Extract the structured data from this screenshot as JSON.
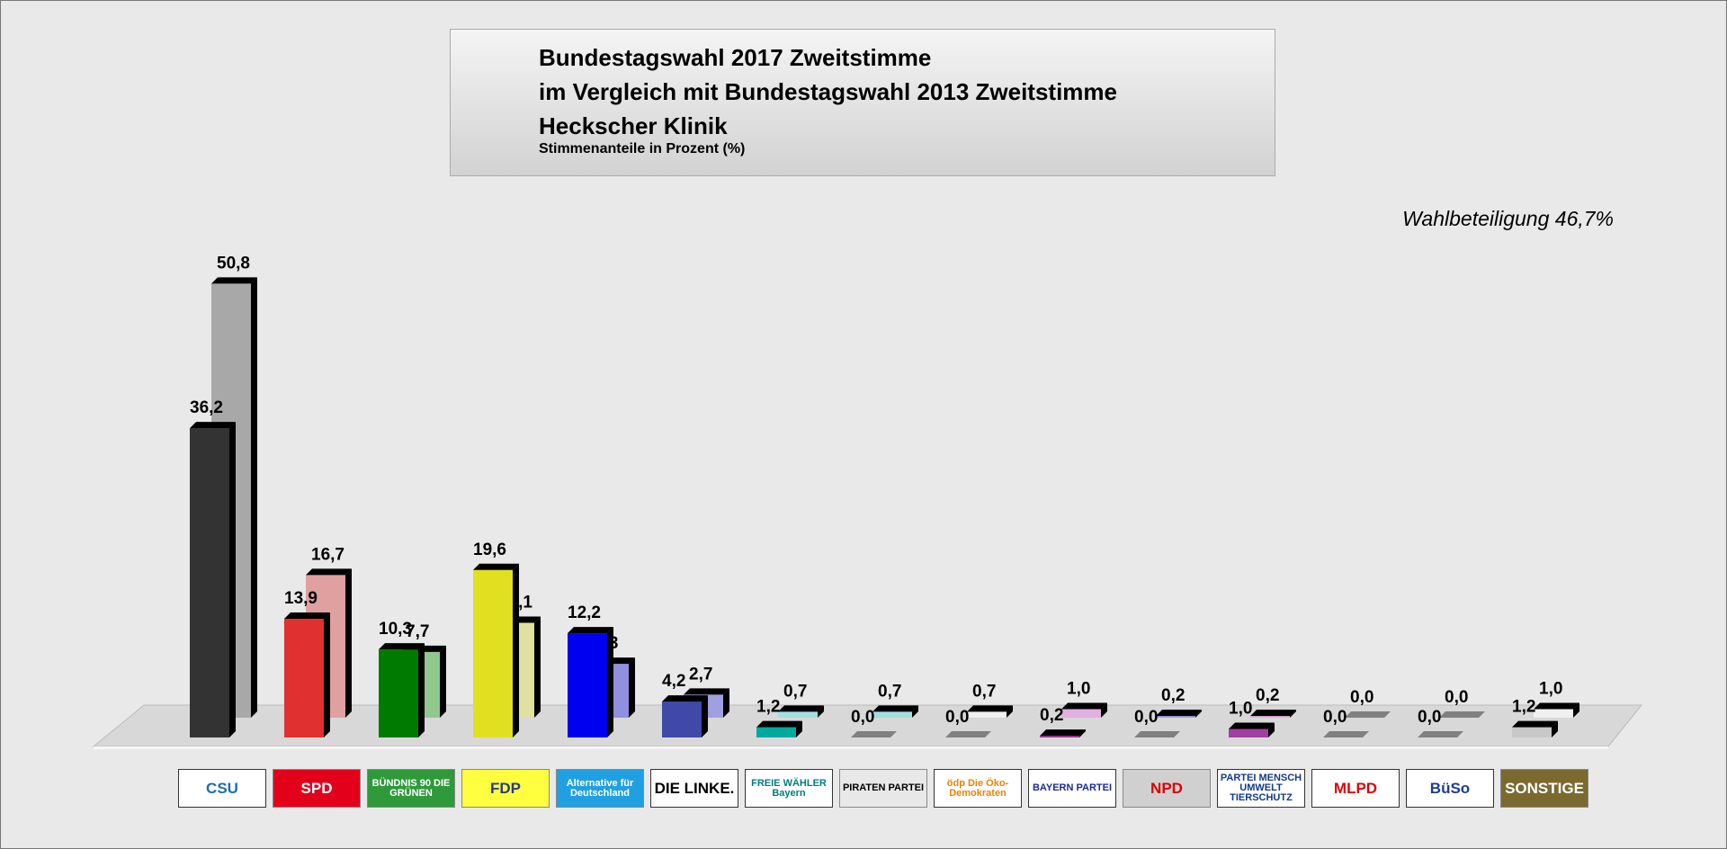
{
  "title": {
    "line1": "Bundestagswahl 2017 Zweitstimme",
    "line2": "im Vergleich mit Bundestagswahl 2013 Zweitstimme",
    "line3": "Heckscher Klinik",
    "subtitle": "Stimmenanteile in Prozent (%)"
  },
  "turnout": "Wahlbeteiligung 46,7%",
  "chart_data": {
    "type": "bar",
    "title": "Bundestagswahl 2017 Zweitstimme im Vergleich mit Bundestagswahl 2013 Zweitstimme",
    "ylabel": "Stimmenanteile in Prozent (%)",
    "ylim": [
      0,
      55
    ],
    "categories": [
      "CSU",
      "SPD",
      "BÜNDNIS 90 DIE GRÜNEN",
      "FDP",
      "Alternative für Deutschland",
      "DIE LINKE.",
      "FREIE WÄHLER",
      "PIRATEN PARTEI",
      "ödp",
      "BAYERN PARTEI",
      "NPD",
      "PARTEI MENSCH UMWELT TIERSCHUTZ",
      "MLPD",
      "BüSo",
      "SONSTIGE"
    ],
    "series": [
      {
        "name": "2017",
        "values": [
          36.2,
          13.9,
          10.3,
          19.6,
          12.2,
          4.2,
          1.2,
          0.0,
          0.0,
          0.2,
          0.0,
          1.0,
          0.0,
          0.0,
          1.2
        ],
        "labels": [
          "36,2",
          "13,9",
          "10,3",
          "19,6",
          "12,2",
          "4,2",
          "1,2",
          "0,0",
          "0,0",
          "0,2",
          "0,0",
          "1,0",
          "0,0",
          "0,0",
          "1,2"
        ],
        "colors": [
          "#333333",
          "#e03030",
          "#007a00",
          "#e0e020",
          "#0000f0",
          "#4048a8",
          "#00a8a0",
          "#888888",
          "#888888",
          "#a03090",
          "#888888",
          "#a040a0",
          "#888888",
          "#888888",
          "#c8c8c8"
        ]
      },
      {
        "name": "2013",
        "values": [
          50.8,
          16.7,
          7.7,
          11.1,
          6.3,
          2.7,
          0.7,
          0.7,
          0.7,
          1.0,
          0.2,
          0.2,
          0.0,
          0.0,
          1.0
        ],
        "labels": [
          "50,8",
          "16,7",
          "7,7",
          "11,1",
          "6,3",
          "2,7",
          "0,7",
          "0,7",
          "0,7",
          "1,0",
          "0,2",
          "0,2",
          "0,0",
          "0,0",
          "1,0"
        ],
        "colors": [
          "#a8a8a8",
          "#e0a0a0",
          "#90c890",
          "#e0e0a0",
          "#9090e0",
          "#a0a0e0",
          "#a0e0e0",
          "#a0e0e0",
          "#f0f0f0",
          "#e0b0e0",
          "#a0a0e0",
          "#e0b0e0",
          "#888888",
          "#888888",
          "#f0f0f0"
        ]
      }
    ]
  },
  "logos": [
    {
      "text": "CSU",
      "bg": "#ffffff",
      "fg": "#1a6eb8"
    },
    {
      "text": "SPD",
      "bg": "#e3001b",
      "fg": "#ffffff"
    },
    {
      "text": "BÜNDNIS 90 DIE GRÜNEN",
      "bg": "#2e9a3a",
      "fg": "#ffffff"
    },
    {
      "text": "FDP",
      "bg": "#ffff40",
      "fg": "#2a3a8a"
    },
    {
      "text": "Alternative für Deutschland",
      "bg": "#20a0e0",
      "fg": "#ffffff"
    },
    {
      "text": "DIE LINKE.",
      "bg": "#ffffff",
      "fg": "#000000"
    },
    {
      "text": "FREIE WÄHLER Bayern",
      "bg": "#ffffff",
      "fg": "#007c80"
    },
    {
      "text": "PIRATEN PARTEI",
      "bg": "#e8e8e8",
      "fg": "#000000"
    },
    {
      "text": "ödp Die Öko-Demokraten",
      "bg": "#ffffff",
      "fg": "#f08000"
    },
    {
      "text": "BAYERN PARTEI",
      "bg": "#ffffff",
      "fg": "#1a2a9a"
    },
    {
      "text": "NPD",
      "bg": "#d0d0d0",
      "fg": "#e00000"
    },
    {
      "text": "PARTEI MENSCH UMWELT TIERSCHUTZ",
      "bg": "#ffffff",
      "fg": "#123a8a"
    },
    {
      "text": "MLPD",
      "bg": "#ffffff",
      "fg": "#e00000"
    },
    {
      "text": "BüSo",
      "bg": "#ffffff",
      "fg": "#1a3aa0"
    },
    {
      "text": "SONSTIGE",
      "bg": "#7a6a30",
      "fg": "#ffffff"
    }
  ]
}
